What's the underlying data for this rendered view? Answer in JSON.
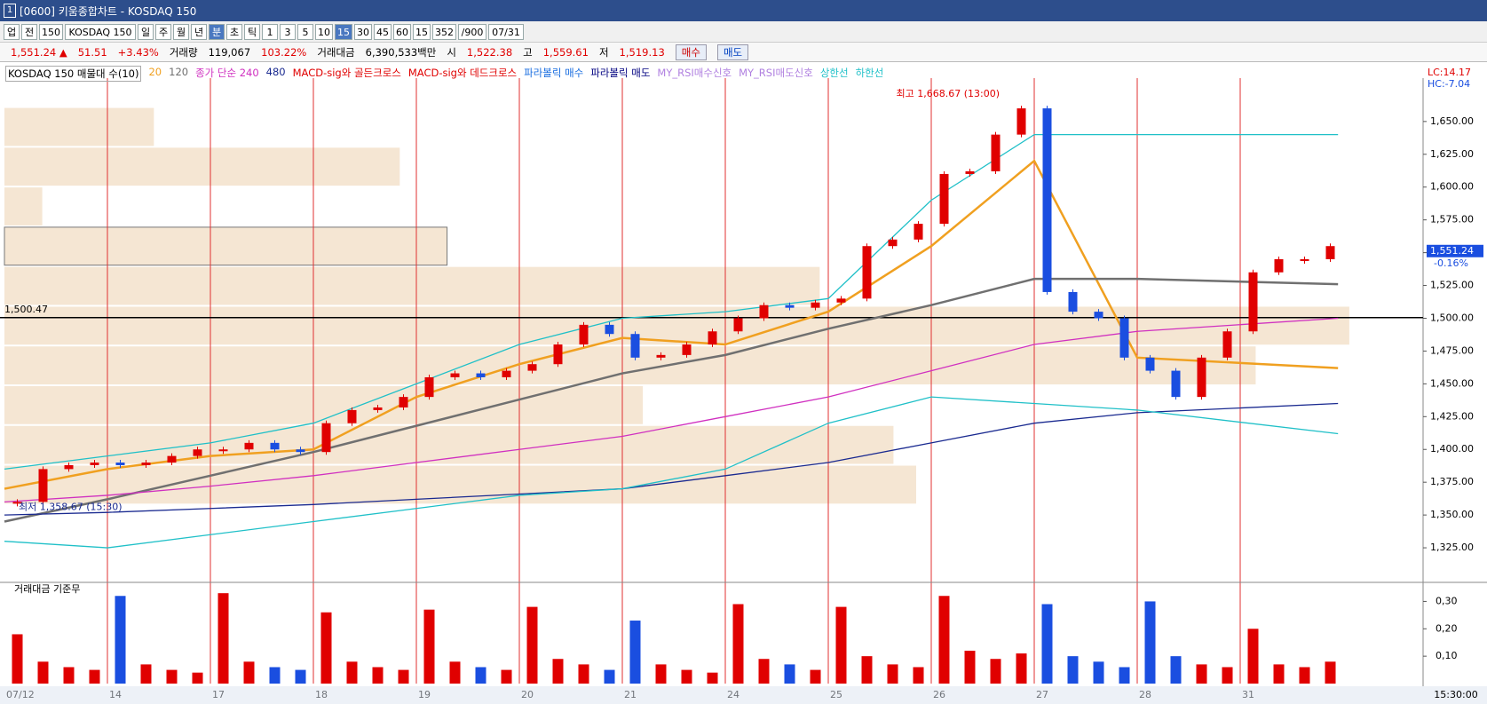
{
  "title_bar": {
    "icon": "1",
    "title": "[0600] 키움종합차트 - KOSDAQ 150"
  },
  "toolbar": {
    "items": [
      "업",
      "전",
      "150",
      "KOSDAQ 150",
      "일",
      "주",
      "월",
      "년",
      "분",
      "초",
      "틱",
      "1",
      "3",
      "5",
      "10",
      "15",
      "30",
      "45",
      "60",
      "15",
      "352",
      "/900",
      "07/31"
    ],
    "active": [
      8,
      15
    ]
  },
  "info_bar": {
    "items": [
      {
        "text": "1,551.24 ▲",
        "color": "#e00000"
      },
      {
        "text": "51.51",
        "color": "#e00000"
      },
      {
        "text": "+3.43%",
        "color": "#e00000"
      },
      {
        "text": "거래량",
        "color": "#000000"
      },
      {
        "text": "119,067",
        "color": "#000000"
      },
      {
        "text": "103.22%",
        "color": "#e00000"
      },
      {
        "text": "거래대금",
        "color": "#000000"
      },
      {
        "text": "6,390,533백만",
        "color": "#000000"
      },
      {
        "text": "시",
        "color": "#000000"
      },
      {
        "text": "1,522.38",
        "color": "#e00000"
      },
      {
        "text": "고",
        "color": "#000000"
      },
      {
        "text": "1,559.61",
        "color": "#e00000"
      },
      {
        "text": "저",
        "color": "#000000"
      },
      {
        "text": "1,519.13",
        "color": "#e00000"
      }
    ],
    "buy": "매수",
    "sell": "매도"
  },
  "chart_data": {
    "type": "candlestick",
    "legend_extra": [
      {
        "name": "KOSDAQ 150 매물대 수(10)",
        "color": "#000000"
      },
      {
        "name": "MACD-sig와 골든크로스",
        "color": "#e00000"
      },
      {
        "name": "MACD-sig와 데드크로스",
        "color": "#e00000"
      },
      {
        "name": "파라볼릭 매수",
        "color": "#1a6ee0"
      },
      {
        "name": "파라볼릭 매도",
        "color": "#000080"
      },
      {
        "name": "MY_RSI매수신호",
        "color": "#b080e0"
      },
      {
        "name": "MY_RSI매도신호",
        "color": "#b080e0"
      }
    ],
    "corner_top": "LC:14.17",
    "corner_bottom": "HC:-7.04",
    "x_labels": [
      "07/12",
      "14",
      "17",
      "18",
      "19",
      "20",
      "21",
      "24",
      "25",
      "26",
      "27",
      "28",
      "31"
    ],
    "closes": [
      1360,
      1385,
      1388,
      1390,
      1388,
      1390,
      1395,
      1400,
      1400,
      1405,
      1400,
      1398,
      1420,
      1430,
      1432,
      1440,
      1455,
      1458,
      1455,
      1460,
      1465,
      1480,
      1495,
      1488,
      1470,
      1472,
      1480,
      1490,
      1500,
      1510,
      1508,
      1512,
      1515,
      1555,
      1560,
      1572,
      1610,
      1612,
      1640,
      1660,
      1520,
      1505,
      1500,
      1470,
      1460,
      1440,
      1470,
      1490,
      1535,
      1545,
      1545,
      1555
    ],
    "ylim": [
      1300,
      1679
    ],
    "yticks": [
      {
        "value": 1325,
        "label": "1,325.00"
      },
      {
        "value": 1350,
        "label": "1,350.00"
      },
      {
        "value": 1375,
        "label": "1,375.00"
      },
      {
        "value": 1400,
        "label": "1,400.00"
      },
      {
        "value": 1425,
        "label": "1,425.00"
      },
      {
        "value": 1450,
        "label": "1,450.00"
      },
      {
        "value": 1475,
        "label": "1,475.00"
      },
      {
        "value": 1500,
        "label": "1,500.00"
      },
      {
        "value": 1525,
        "label": "1,525.00"
      },
      {
        "value": 1550,
        "label": "1,550.00"
      },
      {
        "value": 1575,
        "label": "1,575.00"
      },
      {
        "value": 1600,
        "label": "1,600.00"
      },
      {
        "value": 1625,
        "label": "1,625.00"
      },
      {
        "value": 1650,
        "label": "1,650.00"
      }
    ],
    "up_color": "#e00000",
    "down_color": "#1a4ee0",
    "series": [
      {
        "name": "20",
        "color": "#f0a020",
        "values": [
          1370,
          1385,
          1395,
          1400,
          1440,
          1465,
          1485,
          1480,
          1505,
          1555,
          1620,
          1470,
          1462
        ]
      },
      {
        "name": "120",
        "color": "#707070",
        "values": [
          1345,
          1362,
          1380,
          1398,
          1418,
          1438,
          1458,
          1472,
          1492,
          1510,
          1530,
          1530,
          1526
        ]
      },
      {
        "name": "종가 단순 240",
        "color": "#d030c0",
        "values": [
          1360,
          1365,
          1372,
          1380,
          1390,
          1400,
          1410,
          1425,
          1440,
          1460,
          1480,
          1490,
          1500
        ]
      },
      {
        "name": "480",
        "color": "#1a2a90",
        "values": [
          1350,
          1352,
          1355,
          1358,
          1362,
          1366,
          1370,
          1380,
          1390,
          1405,
          1420,
          1428,
          1435
        ]
      },
      {
        "name": "상한선",
        "color": "#20c0c8",
        "values": [
          1385,
          1395,
          1405,
          1420,
          1450,
          1480,
          1500,
          1505,
          1515,
          1590,
          1640,
          1640,
          1640
        ]
      },
      {
        "name": "하한선",
        "color": "#20c0c8",
        "values": [
          1330,
          1325,
          1335,
          1345,
          1355,
          1365,
          1370,
          1385,
          1420,
          1440,
          1435,
          1430,
          1412
        ]
      }
    ],
    "volume_profile": {
      "values": [
        158,
        418,
        40,
        468,
        862,
        1422,
        1323,
        675,
        940,
        964
      ],
      "xlim": [
        0,
        1500
      ],
      "ylim": [
        1358,
        1661
      ],
      "color": "#f5e6d3",
      "highlight": 3
    },
    "high_note": "최고 1,668.67 (13:00)",
    "low_note": "최저 1,358.67 (15:30)",
    "hline": {
      "value": 1500.47,
      "label": "1,500.47"
    },
    "current": {
      "value": 1551.24,
      "label": "1,551.24",
      "change": "-0.16%"
    },
    "volume": {
      "title": "거래대금 기준무",
      "ylim": [
        0,
        0.35
      ],
      "yticks": [
        {
          "value": 0.1,
          "label": "0,10"
        },
        {
          "value": 0.2,
          "label": "0,20"
        },
        {
          "value": 0.3,
          "label": "0,30"
        }
      ],
      "values": [
        0.18,
        0.08,
        0.06,
        0.05,
        0.32,
        0.07,
        0.05,
        0.04,
        0.33,
        0.08,
        0.06,
        0.05,
        0.26,
        0.08,
        0.06,
        0.05,
        0.27,
        0.08,
        0.06,
        0.05,
        0.28,
        0.09,
        0.07,
        0.05,
        0.23,
        0.07,
        0.05,
        0.04,
        0.29,
        0.09,
        0.07,
        0.05,
        0.28,
        0.1,
        0.07,
        0.06,
        0.32,
        0.12,
        0.09,
        0.11,
        0.29,
        0.1,
        0.08,
        0.06,
        0.3,
        0.1,
        0.07,
        0.06,
        0.2,
        0.07,
        0.06,
        0.08
      ]
    },
    "time_label": "15:30:00"
  }
}
